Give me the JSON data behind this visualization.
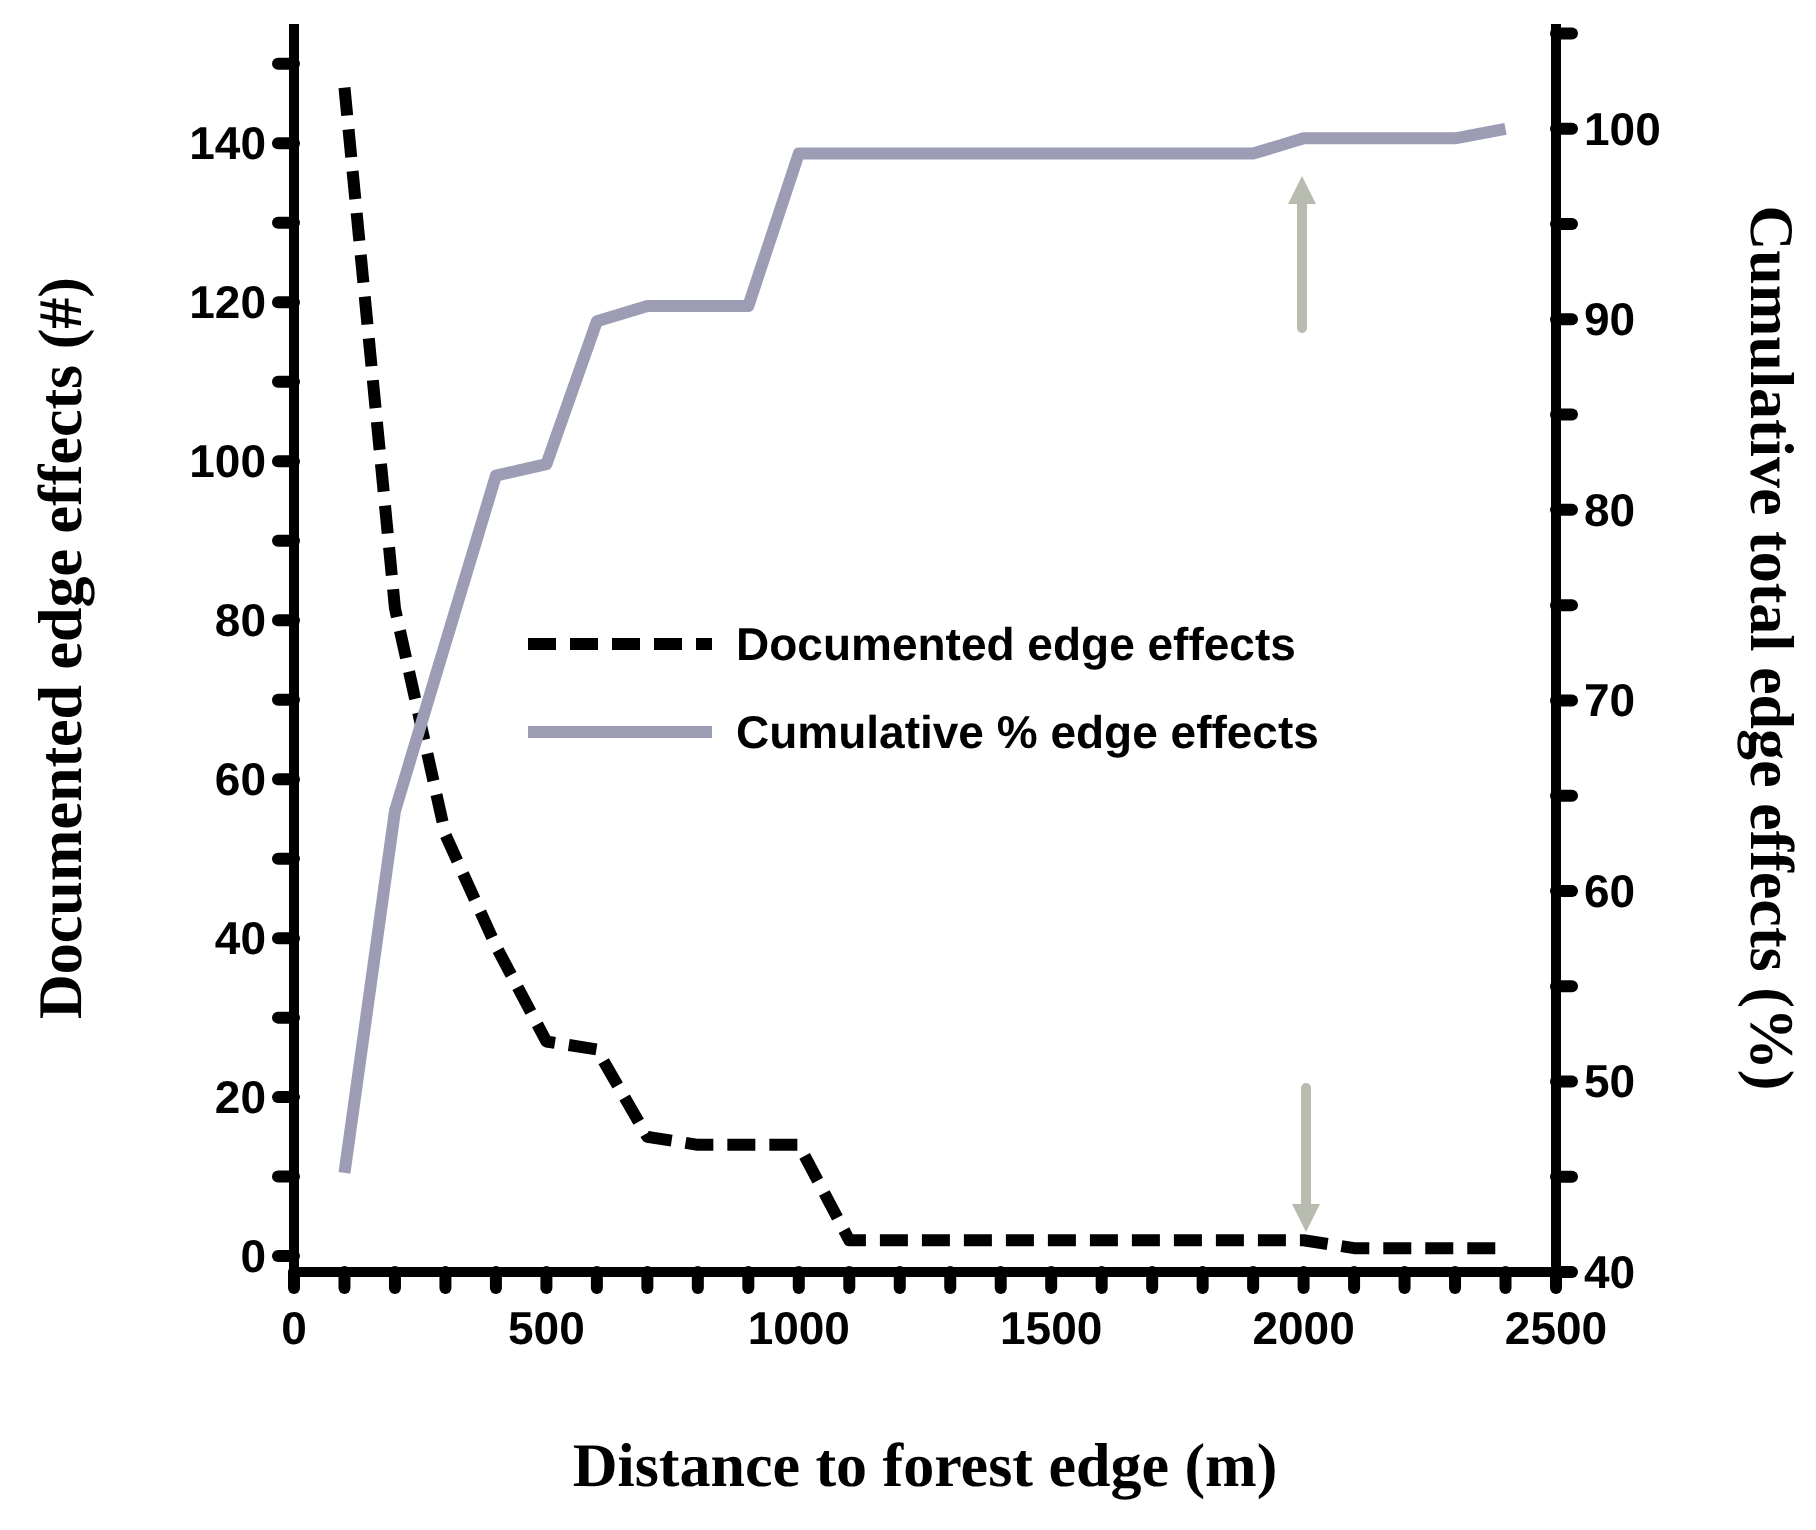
{
  "chart_data": {
    "type": "line",
    "xlabel": "Distance to forest edge (m)",
    "ylabel": "Documented edge effects (#)",
    "y2label": "Cumulative total edge effects (%)",
    "x": [
      100,
      200,
      300,
      400,
      500,
      600,
      700,
      800,
      900,
      1000,
      1100,
      1200,
      1300,
      1400,
      1500,
      1600,
      1700,
      1800,
      1900,
      2000,
      2100,
      2200,
      2300,
      2400
    ],
    "series": [
      {
        "name": "Documented edge effects",
        "color": "#000000",
        "line_style": "dashed",
        "values": [
          147,
          81.5,
          53,
          39,
          27,
          26,
          15,
          14,
          14,
          14,
          2,
          2,
          2,
          2,
          2,
          2,
          2,
          2,
          2,
          2,
          1,
          1,
          1,
          1
        ]
      },
      {
        "name": "Cumulative % edge effects",
        "color": "#9c9cb4",
        "line_style": "solid",
        "axis": "y2",
        "values": [
          45.2,
          64.2,
          73,
          81.8,
          82.4,
          89.9,
          90.7,
          90.7,
          90.7,
          98.7,
          98.7,
          98.7,
          98.7,
          98.7,
          98.7,
          98.7,
          98.7,
          98.7,
          98.7,
          99.5,
          99.5,
          99.5,
          99.5,
          100
        ]
      }
    ],
    "xlim": [
      0,
      2500
    ],
    "xticks": [
      0,
      {
        "value": 100,
        "label": null
      },
      {
        "value": 200,
        "label": null
      },
      {
        "value": 300,
        "label": null
      },
      {
        "value": 400,
        "label": null
      },
      500,
      {
        "value": 600,
        "label": null
      },
      {
        "value": 700,
        "label": null
      },
      {
        "value": 800,
        "label": null
      },
      {
        "value": 900,
        "label": null
      },
      1000,
      {
        "value": 1100,
        "label": null
      },
      {
        "value": 1200,
        "label": null
      },
      {
        "value": 1300,
        "label": null
      },
      {
        "value": 1400,
        "label": null
      },
      1500,
      {
        "value": 1600,
        "label": null
      },
      {
        "value": 1700,
        "label": null
      },
      {
        "value": 1800,
        "label": null
      },
      {
        "value": 1900,
        "label": null
      },
      2000,
      {
        "value": 2100,
        "label": null
      },
      {
        "value": 2200,
        "label": null
      },
      {
        "value": 2300,
        "label": null
      },
      {
        "value": 2400,
        "label": null
      },
      2500
    ],
    "ylim": [
      -2,
      155
    ],
    "yticks": [
      0,
      {
        "value": 10,
        "label": null
      },
      20,
      {
        "value": 30,
        "label": null
      },
      40,
      {
        "value": 50,
        "label": null
      },
      60,
      {
        "value": 70,
        "label": null
      },
      80,
      {
        "value": 90,
        "label": null
      },
      100,
      {
        "value": 110,
        "label": null
      },
      120,
      {
        "value": 130,
        "label": null
      },
      140,
      {
        "value": 150,
        "label": null
      }
    ],
    "y2lim": [
      40,
      105.5
    ],
    "y2ticks": [
      40,
      {
        "value": 45,
        "label": null
      },
      50,
      {
        "value": 55,
        "label": null
      },
      60,
      {
        "value": 65,
        "label": null
      },
      70,
      {
        "value": 75,
        "label": null
      },
      80,
      {
        "value": 85,
        "label": null
      },
      90,
      {
        "value": 95,
        "label": null
      },
      100,
      {
        "value": 105,
        "label": null
      }
    ],
    "grid": false,
    "legend": "right",
    "marker": "none"
  }
}
